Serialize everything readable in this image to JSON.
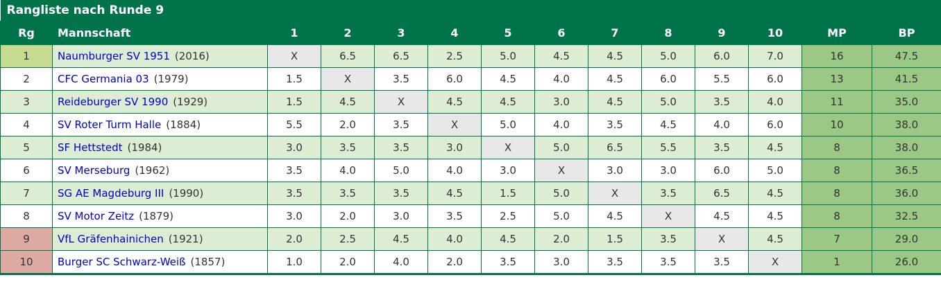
{
  "title": "Rangliste nach Runde 9",
  "colors": {
    "header_green": "#007348",
    "stripe_green": "#ddedd3",
    "score_column_green": "#9bc885",
    "promotion_rank_green": "#c6db90",
    "relegation_rank_pink": "#dfa9a4",
    "diagonal_gray": "#e8e8e8",
    "link_blue": "#0000cc",
    "text_gray": "#333333"
  },
  "table": {
    "headers": {
      "rank": "Rg",
      "team": "Mannschaft",
      "rounds": [
        "1",
        "2",
        "3",
        "4",
        "5",
        "6",
        "7",
        "8",
        "9",
        "10"
      ],
      "mp": "MP",
      "bp": "BP"
    },
    "rows": [
      {
        "rank": "1",
        "team": "Naumburger SV 1951",
        "year": "(2016)",
        "results": [
          "X",
          "6.5",
          "6.5",
          "2.5",
          "5.0",
          "4.5",
          "4.5",
          "5.0",
          "6.0",
          "7.0"
        ],
        "mp": "16",
        "bp": "47.5",
        "rank_highlight": "promotion"
      },
      {
        "rank": "2",
        "team": "CFC Germania 03",
        "year": "(1979)",
        "results": [
          "1.5",
          "X",
          "3.5",
          "6.0",
          "4.5",
          "4.0",
          "4.5",
          "6.0",
          "5.5",
          "6.0"
        ],
        "mp": "13",
        "bp": "41.5",
        "rank_highlight": "none"
      },
      {
        "rank": "3",
        "team": "Reideburger SV 1990",
        "year": "(1929)",
        "results": [
          "1.5",
          "4.5",
          "X",
          "4.5",
          "4.5",
          "3.0",
          "4.5",
          "5.0",
          "3.5",
          "4.0"
        ],
        "mp": "11",
        "bp": "35.0",
        "rank_highlight": "none"
      },
      {
        "rank": "4",
        "team": "SV Roter Turm Halle",
        "year": "(1884)",
        "results": [
          "5.5",
          "2.0",
          "3.5",
          "X",
          "5.0",
          "4.0",
          "3.5",
          "4.5",
          "4.0",
          "6.0"
        ],
        "mp": "10",
        "bp": "38.0",
        "rank_highlight": "none"
      },
      {
        "rank": "5",
        "team": "SF Hettstedt",
        "year": "(1984)",
        "results": [
          "3.0",
          "3.5",
          "3.5",
          "3.0",
          "X",
          "5.0",
          "6.5",
          "5.5",
          "3.5",
          "4.5"
        ],
        "mp": "8",
        "bp": "38.0",
        "rank_highlight": "none"
      },
      {
        "rank": "6",
        "team": "SV Merseburg",
        "year": "(1962)",
        "results": [
          "3.5",
          "4.0",
          "5.0",
          "4.0",
          "3.0",
          "X",
          "3.0",
          "3.0",
          "6.0",
          "5.0"
        ],
        "mp": "8",
        "bp": "36.5",
        "rank_highlight": "none"
      },
      {
        "rank": "7",
        "team": "SG AE Magdeburg III",
        "year": "(1990)",
        "results": [
          "3.5",
          "3.5",
          "3.5",
          "4.5",
          "1.5",
          "5.0",
          "X",
          "3.5",
          "6.5",
          "4.5"
        ],
        "mp": "8",
        "bp": "36.0",
        "rank_highlight": "none"
      },
      {
        "rank": "8",
        "team": "SV Motor Zeitz",
        "year": "(1879)",
        "results": [
          "3.0",
          "2.0",
          "3.0",
          "3.5",
          "2.5",
          "5.0",
          "4.5",
          "X",
          "4.5",
          "4.5"
        ],
        "mp": "8",
        "bp": "32.5",
        "rank_highlight": "none"
      },
      {
        "rank": "9",
        "team": "VfL Gräfenhainichen",
        "year": "(1921)",
        "results": [
          "2.0",
          "2.5",
          "4.5",
          "4.0",
          "4.5",
          "2.0",
          "1.5",
          "3.5",
          "X",
          "4.5"
        ],
        "mp": "7",
        "bp": "29.0",
        "rank_highlight": "relegation"
      },
      {
        "rank": "10",
        "team": "Burger SC Schwarz-Weiß",
        "year": "(1857)",
        "results": [
          "1.0",
          "2.0",
          "4.0",
          "2.0",
          "3.5",
          "3.0",
          "3.5",
          "3.5",
          "3.5",
          "X"
        ],
        "mp": "1",
        "bp": "26.0",
        "rank_highlight": "relegation"
      }
    ]
  }
}
